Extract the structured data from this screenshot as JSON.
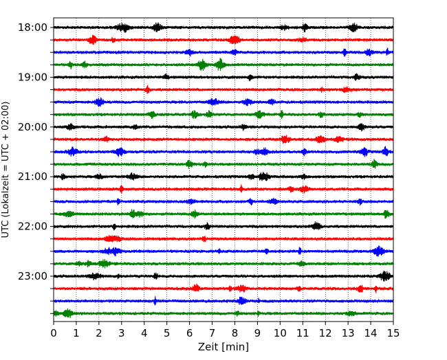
{
  "chart_data": {
    "type": "line",
    "title": "",
    "xlabel": "Zeit  [min]",
    "ylabel": "UTC (Lokalzeit = UTC + 02:00)",
    "xlim": [
      0,
      15
    ],
    "x_ticks": [
      "0",
      "1",
      "2",
      "3",
      "4",
      "5",
      "6",
      "7",
      "8",
      "9",
      "10",
      "11",
      "12",
      "13",
      "14",
      "15"
    ],
    "y_tick_labels": [
      "18:00",
      "19:00",
      "20:00",
      "21:00",
      "22:00",
      "23:00"
    ],
    "grid": "vertical-dotted",
    "colors": [
      "#000000",
      "#ff0000",
      "#0000ff",
      "#008000"
    ],
    "traces": [
      {
        "time": "18:00",
        "color": "#000000"
      },
      {
        "time": "18:15",
        "color": "#ff0000"
      },
      {
        "time": "18:30",
        "color": "#0000ff"
      },
      {
        "time": "18:45",
        "color": "#008000"
      },
      {
        "time": "19:00",
        "color": "#000000"
      },
      {
        "time": "19:15",
        "color": "#ff0000"
      },
      {
        "time": "19:30",
        "color": "#0000ff"
      },
      {
        "time": "19:45",
        "color": "#008000"
      },
      {
        "time": "20:00",
        "color": "#000000"
      },
      {
        "time": "20:15",
        "color": "#ff0000"
      },
      {
        "time": "20:30",
        "color": "#0000ff"
      },
      {
        "time": "20:45",
        "color": "#008000"
      },
      {
        "time": "21:00",
        "color": "#000000"
      },
      {
        "time": "21:15",
        "color": "#ff0000"
      },
      {
        "time": "21:30",
        "color": "#0000ff"
      },
      {
        "time": "21:45",
        "color": "#008000"
      },
      {
        "time": "22:00",
        "color": "#000000"
      },
      {
        "time": "22:15",
        "color": "#ff0000"
      },
      {
        "time": "22:30",
        "color": "#0000ff"
      },
      {
        "time": "22:45",
        "color": "#008000"
      },
      {
        "time": "23:00",
        "color": "#000000"
      },
      {
        "time": "23:15",
        "color": "#ff0000"
      },
      {
        "time": "23:30",
        "color": "#0000ff"
      },
      {
        "time": "23:45",
        "color": "#008000"
      }
    ]
  }
}
